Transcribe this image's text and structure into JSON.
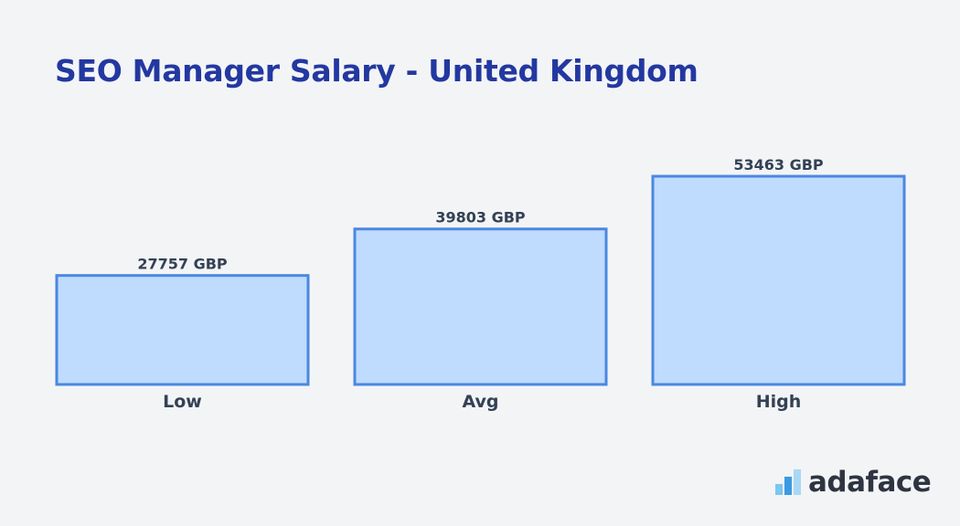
{
  "colors": {
    "title": "#2338a0",
    "bar_fill": "#bfdbfe",
    "bar_stroke": "#4a88e0",
    "label": "#334155",
    "background": "#f3f4f6"
  },
  "logo": {
    "text": "adaface",
    "icon": "adaface-bars-logo-icon"
  },
  "chart_data": {
    "type": "bar",
    "title": "SEO Manager Salary - United Kingdom",
    "xlabel": "",
    "ylabel": "",
    "categories": [
      "Low",
      "Avg",
      "High"
    ],
    "values": [
      27757,
      39803,
      53463
    ],
    "value_labels": [
      "27757 GBP",
      "39803 GBP",
      "53463 GBP"
    ],
    "unit": "GBP",
    "grid": false,
    "legend": "none"
  }
}
